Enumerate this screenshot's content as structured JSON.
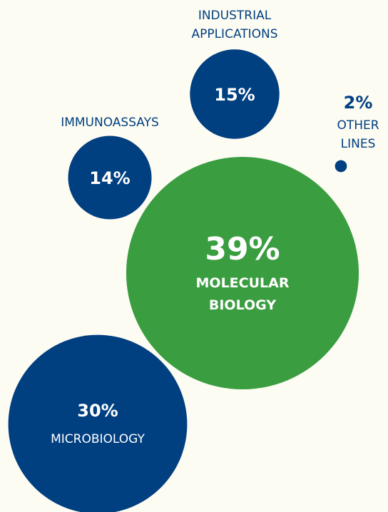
{
  "chart_data": {
    "type": "bubble",
    "categories": [
      "INDUSTRIAL APPLICATIONS",
      "IMMUNOASSAYS",
      "MOLECULAR BIOLOGY",
      "MICROBIOLOGY",
      "OTHER LINES"
    ],
    "values": [
      15,
      14,
      39,
      30,
      2
    ],
    "value_labels": [
      "15%",
      "14%",
      "39%",
      "30%",
      "2%"
    ],
    "colors": [
      "#003f80",
      "#003f80",
      "#3a9d40",
      "#003f80",
      "#003f80"
    ]
  }
}
